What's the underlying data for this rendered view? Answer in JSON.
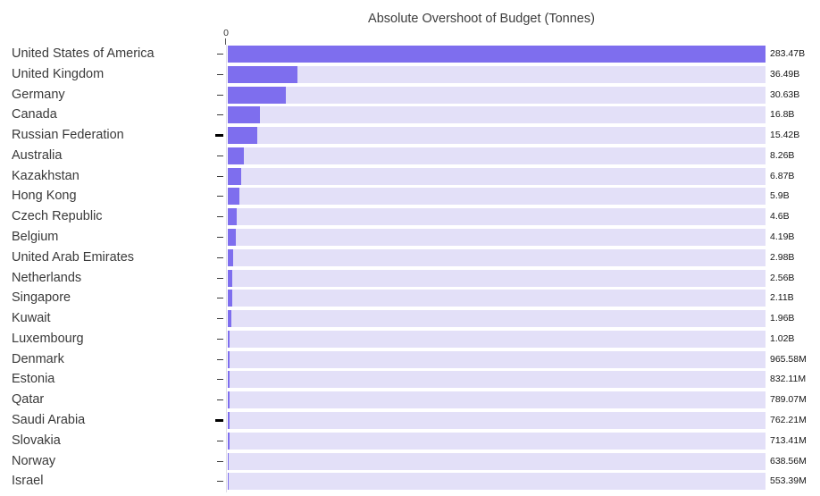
{
  "chart_data": {
    "type": "bar",
    "orientation": "horizontal",
    "title": "Absolute Overshoot of Budget (Tonnes)",
    "zero_label": "0",
    "x_axis_tick_labels": [
      "0"
    ],
    "xlim": [
      0,
      283.47
    ],
    "unit": "Tonnes",
    "grid": false,
    "legend": false,
    "categories": [
      "United States of America",
      "United Kingdom",
      "Germany",
      "Canada",
      "Russian Federation",
      "Australia",
      "Kazakhstan",
      "Hong Kong",
      "Czech Republic",
      "Belgium",
      "United Arab Emirates",
      "Netherlands",
      "Singapore",
      "Kuwait",
      "Luxembourg",
      "Denmark",
      "Estonia",
      "Qatar",
      "Saudi Arabia",
      "Slovakia",
      "Norway",
      "Israel"
    ],
    "value_labels": [
      "283.47B",
      "36.49B",
      "30.63B",
      "16.8B",
      "15.42B",
      "8.26B",
      "6.87B",
      "5.9B",
      "4.6B",
      "4.19B",
      "2.98B",
      "2.56B",
      "2.11B",
      "1.96B",
      "1.02B",
      "965.58M",
      "832.11M",
      "789.07M",
      "762.21M",
      "713.41M",
      "638.56M",
      "553.39M"
    ],
    "values_billions": [
      283.47,
      36.49,
      30.63,
      16.8,
      15.42,
      8.26,
      6.87,
      5.9,
      4.6,
      4.19,
      2.98,
      2.56,
      2.11,
      1.96,
      1.02,
      0.96558,
      0.83211,
      0.78907,
      0.76221,
      0.71341,
      0.63856,
      0.55339
    ],
    "bold_tick_indices": [
      4,
      18
    ],
    "colors": {
      "bar": "#7e6eee",
      "track": "#e3e0f8",
      "title_text": "#3d3d3d",
      "category_text": "#3a3a3a",
      "value_text": "#151515",
      "background": "#ffffff"
    }
  }
}
